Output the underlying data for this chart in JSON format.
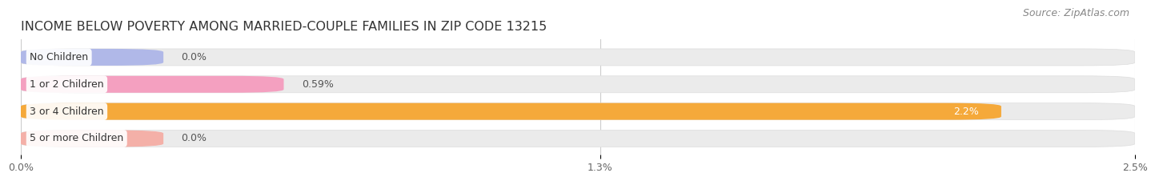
{
  "title": "INCOME BELOW POVERTY AMONG MARRIED-COUPLE FAMILIES IN ZIP CODE 13215",
  "source": "Source: ZipAtlas.com",
  "categories": [
    "No Children",
    "1 or 2 Children",
    "3 or 4 Children",
    "5 or more Children"
  ],
  "values": [
    0.0,
    0.59,
    2.2,
    0.0
  ],
  "bar_colors": [
    "#b0b8e8",
    "#f4a0c0",
    "#f5a93a",
    "#f4b0a8"
  ],
  "bar_bg_color": "#ebebeb",
  "value_labels": [
    "0.0%",
    "0.59%",
    "2.2%",
    "0.0%"
  ],
  "label_inside": [
    false,
    false,
    true,
    false
  ],
  "xlim": [
    0,
    2.5
  ],
  "xticks": [
    0.0,
    1.3,
    2.5
  ],
  "xtick_labels": [
    "0.0%",
    "1.3%",
    "2.5%"
  ],
  "background_color": "#ffffff",
  "bar_height": 0.62,
  "title_fontsize": 11.5,
  "source_fontsize": 9,
  "value_fontsize": 9,
  "tick_fontsize": 9,
  "cat_fontsize": 9
}
